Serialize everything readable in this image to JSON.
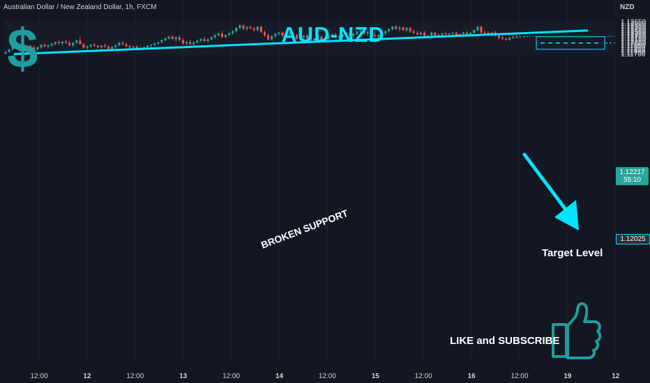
{
  "header": {
    "symbol_title": "Australian Dollar / New Zealand Dollar, 1h, FXCM",
    "currency": "NZD"
  },
  "annotations": {
    "title": "AUD-NZD",
    "dollar_sign": "$",
    "support_label": "BROKEN SUPPORT",
    "target_label": "Target Level",
    "cta": "LIKE and SUBSCRIBE"
  },
  "price_tags": {
    "current_price": "1.12217",
    "countdown": "55:10",
    "target_price": "1.12025"
  },
  "colors": {
    "background": "#131722",
    "up": "#26a69a",
    "down": "#ef5350",
    "accent": "#00e5ff",
    "grid": "#1e2230"
  },
  "icons": [
    "dollar-icon",
    "thumbs-up-icon",
    "arrow-down-right-icon"
  ],
  "chart_data": {
    "type": "candlestick",
    "title": "AUD-NZD",
    "ylabel": "NZD",
    "ylim": [
      1.1167,
      1.1268
    ],
    "y_ticks": [
      "1.12650",
      "1.12600",
      "1.12550",
      "1.12500",
      "1.12450",
      "1.12400",
      "1.12350",
      "1.12300",
      "1.12250",
      "1.12200",
      "1.12150",
      "1.12100",
      "1.12050",
      "1.12000",
      "1.11950",
      "1.11900",
      "1.11850",
      "1.11800",
      "1.11750",
      "1.11700"
    ],
    "x_ticks": [
      "12:00",
      "12",
      "12:00",
      "13",
      "12:00",
      "14",
      "12:00",
      "15",
      "12:00",
      "16",
      "12:00",
      "19",
      "12"
    ],
    "support_line": {
      "start_price": 1.117,
      "end_price": 1.1239
    },
    "target_level": 1.12025,
    "current_price": 1.12217,
    "candles": [
      [
        1.1172,
        1.1178,
        1.1169,
        1.1176
      ],
      [
        1.1176,
        1.1186,
        1.1175,
        1.1184
      ],
      [
        1.1184,
        1.1195,
        1.118,
        1.1192
      ],
      [
        1.1192,
        1.1197,
        1.1185,
        1.1188
      ],
      [
        1.1188,
        1.1194,
        1.1176,
        1.118
      ],
      [
        1.118,
        1.119,
        1.1172,
        1.1187
      ],
      [
        1.1187,
        1.1196,
        1.1183,
        1.1194
      ],
      [
        1.1194,
        1.1198,
        1.1188,
        1.119
      ],
      [
        1.119,
        1.1195,
        1.1182,
        1.1184
      ],
      [
        1.1184,
        1.1192,
        1.118,
        1.119
      ],
      [
        1.119,
        1.1199,
        1.1186,
        1.1197
      ],
      [
        1.1197,
        1.1202,
        1.119,
        1.1193
      ],
      [
        1.1193,
        1.1199,
        1.1187,
        1.1196
      ],
      [
        1.1196,
        1.1203,
        1.1192,
        1.12
      ],
      [
        1.12,
        1.1207,
        1.1196,
        1.1205
      ],
      [
        1.1205,
        1.121,
        1.1198,
        1.1202
      ],
      [
        1.1202,
        1.1208,
        1.1196,
        1.1206
      ],
      [
        1.1206,
        1.1212,
        1.12,
        1.1203
      ],
      [
        1.1203,
        1.1209,
        1.1193,
        1.1196
      ],
      [
        1.1196,
        1.1205,
        1.119,
        1.1203
      ],
      [
        1.1203,
        1.1213,
        1.1199,
        1.121
      ],
      [
        1.121,
        1.1221,
        1.1198,
        1.1199
      ],
      [
        1.1199,
        1.1203,
        1.1186,
        1.1189
      ],
      [
        1.1189,
        1.1195,
        1.1183,
        1.1193
      ],
      [
        1.1193,
        1.12,
        1.1188,
        1.1197
      ],
      [
        1.1197,
        1.1202,
        1.1191,
        1.1194
      ],
      [
        1.1194,
        1.1198,
        1.1187,
        1.119
      ],
      [
        1.119,
        1.1197,
        1.1185,
        1.1195
      ],
      [
        1.1195,
        1.1201,
        1.1189,
        1.1192
      ],
      [
        1.1192,
        1.1196,
        1.1184,
        1.1186
      ],
      [
        1.1186,
        1.1194,
        1.1182,
        1.1191
      ],
      [
        1.1191,
        1.1199,
        1.1187,
        1.1196
      ],
      [
        1.1196,
        1.1206,
        1.1193,
        1.1203
      ],
      [
        1.1203,
        1.1208,
        1.1196,
        1.1199
      ],
      [
        1.1199,
        1.1203,
        1.119,
        1.1193
      ],
      [
        1.1193,
        1.1197,
        1.1186,
        1.1189
      ],
      [
        1.1189,
        1.1195,
        1.1184,
        1.1192
      ],
      [
        1.1192,
        1.1196,
        1.1185,
        1.1187
      ],
      [
        1.1187,
        1.1191,
        1.1182,
        1.1185
      ],
      [
        1.1185,
        1.1192,
        1.1182,
        1.119
      ],
      [
        1.119,
        1.1197,
        1.1186,
        1.1194
      ],
      [
        1.1194,
        1.1199,
        1.1189,
        1.1197
      ],
      [
        1.1197,
        1.1204,
        1.1193,
        1.1201
      ],
      [
        1.1201,
        1.1207,
        1.1197,
        1.1205
      ],
      [
        1.1205,
        1.1213,
        1.1201,
        1.1211
      ],
      [
        1.1211,
        1.1219,
        1.1207,
        1.1216
      ],
      [
        1.1216,
        1.1224,
        1.1212,
        1.1221
      ],
      [
        1.1221,
        1.1226,
        1.1212,
        1.1214
      ],
      [
        1.1214,
        1.1222,
        1.1207,
        1.1219
      ],
      [
        1.1219,
        1.1225,
        1.1209,
        1.1211
      ],
      [
        1.1211,
        1.1216,
        1.1198,
        1.1201
      ],
      [
        1.1201,
        1.1209,
        1.1196,
        1.1205
      ],
      [
        1.1205,
        1.1212,
        1.1197,
        1.1199
      ],
      [
        1.1199,
        1.1207,
        1.1195,
        1.1204
      ],
      [
        1.1204,
        1.1212,
        1.1201,
        1.1209
      ],
      [
        1.1209,
        1.1217,
        1.1205,
        1.1214
      ],
      [
        1.1214,
        1.1221,
        1.1206,
        1.1208
      ],
      [
        1.1208,
        1.1216,
        1.1204,
        1.1213
      ],
      [
        1.1213,
        1.1222,
        1.121,
        1.1219
      ],
      [
        1.1219,
        1.1228,
        1.1215,
        1.1225
      ],
      [
        1.1225,
        1.1233,
        1.1221,
        1.123
      ],
      [
        1.123,
        1.1237,
        1.1217,
        1.122
      ],
      [
        1.122,
        1.1228,
        1.1216,
        1.1226
      ],
      [
        1.1226,
        1.1234,
        1.1222,
        1.1231
      ],
      [
        1.1231,
        1.124,
        1.1227,
        1.1237
      ],
      [
        1.1237,
        1.1249,
        1.1233,
        1.1247
      ],
      [
        1.1247,
        1.1257,
        1.1242,
        1.1254
      ],
      [
        1.1254,
        1.1256,
        1.124,
        1.1244
      ],
      [
        1.1244,
        1.1252,
        1.1238,
        1.1249
      ],
      [
        1.1249,
        1.1253,
        1.1243,
        1.1245
      ],
      [
        1.1245,
        1.125,
        1.1236,
        1.124
      ],
      [
        1.124,
        1.1252,
        1.1236,
        1.125
      ],
      [
        1.125,
        1.1252,
        1.1232,
        1.1234
      ],
      [
        1.1234,
        1.1239,
        1.122,
        1.1225
      ],
      [
        1.1225,
        1.1229,
        1.121,
        1.1213
      ],
      [
        1.1213,
        1.1225,
        1.121,
        1.1222
      ],
      [
        1.1222,
        1.1232,
        1.1218,
        1.1229
      ],
      [
        1.1229,
        1.1235,
        1.1224,
        1.1233
      ],
      [
        1.1233,
        1.1236,
        1.1221,
        1.1224
      ],
      [
        1.1224,
        1.1231,
        1.1219,
        1.1228
      ],
      [
        1.1228,
        1.1234,
        1.1224,
        1.1231
      ],
      [
        1.1231,
        1.1236,
        1.1222,
        1.1225
      ],
      [
        1.1225,
        1.1229,
        1.1212,
        1.1215
      ],
      [
        1.1215,
        1.1222,
        1.121,
        1.1219
      ],
      [
        1.1219,
        1.1227,
        1.1215,
        1.1224
      ],
      [
        1.1224,
        1.1229,
        1.1213,
        1.1216
      ],
      [
        1.1216,
        1.122,
        1.1206,
        1.121
      ],
      [
        1.121,
        1.1218,
        1.1206,
        1.1215
      ],
      [
        1.1215,
        1.1224,
        1.1211,
        1.1221
      ],
      [
        1.1221,
        1.1225,
        1.1209,
        1.1212
      ],
      [
        1.1212,
        1.122,
        1.1207,
        1.1216
      ],
      [
        1.1216,
        1.1225,
        1.1212,
        1.1223
      ],
      [
        1.1223,
        1.1231,
        1.1219,
        1.1227
      ],
      [
        1.1227,
        1.1233,
        1.1216,
        1.1219
      ],
      [
        1.1219,
        1.1226,
        1.1212,
        1.1222
      ],
      [
        1.1222,
        1.123,
        1.1218,
        1.1227
      ],
      [
        1.1227,
        1.1235,
        1.1223,
        1.1232
      ],
      [
        1.1232,
        1.1238,
        1.122,
        1.1224
      ],
      [
        1.1224,
        1.1232,
        1.1219,
        1.1229
      ],
      [
        1.1229,
        1.1239,
        1.1225,
        1.1236
      ],
      [
        1.1236,
        1.1244,
        1.123,
        1.1238
      ],
      [
        1.1238,
        1.1242,
        1.1226,
        1.123
      ],
      [
        1.123,
        1.1238,
        1.1224,
        1.1235
      ],
      [
        1.1235,
        1.124,
        1.1222,
        1.1226
      ],
      [
        1.1226,
        1.1233,
        1.1217,
        1.1222
      ],
      [
        1.1222,
        1.1228,
        1.1215,
        1.1226
      ],
      [
        1.1226,
        1.1234,
        1.1222,
        1.1231
      ],
      [
        1.1231,
        1.124,
        1.1226,
        1.1237
      ],
      [
        1.1237,
        1.1246,
        1.1233,
        1.1243
      ],
      [
        1.1243,
        1.1252,
        1.1239,
        1.125
      ],
      [
        1.125,
        1.1255,
        1.1241,
        1.1244
      ],
      [
        1.1244,
        1.1251,
        1.1237,
        1.1248
      ],
      [
        1.1248,
        1.1251,
        1.1238,
        1.124
      ],
      [
        1.124,
        1.1249,
        1.1235,
        1.1246
      ],
      [
        1.1246,
        1.125,
        1.1233,
        1.1236
      ],
      [
        1.1236,
        1.1243,
        1.1228,
        1.1232
      ],
      [
        1.1232,
        1.1238,
        1.1224,
        1.1228
      ],
      [
        1.1228,
        1.1236,
        1.1224,
        1.1233
      ],
      [
        1.1233,
        1.1237,
        1.122,
        1.1223
      ],
      [
        1.1223,
        1.1226,
        1.1219,
        1.1224
      ],
      [
        1.1224,
        1.1235,
        1.1222,
        1.1233
      ],
      [
        1.1233,
        1.1234,
        1.1222,
        1.1224
      ],
      [
        1.1224,
        1.1229,
        1.1218,
        1.1226
      ],
      [
        1.1226,
        1.1233,
        1.1222,
        1.123
      ],
      [
        1.123,
        1.1236,
        1.1225,
        1.1228
      ],
      [
        1.1228,
        1.1232,
        1.1222,
        1.123
      ],
      [
        1.123,
        1.1235,
        1.1225,
        1.1232
      ],
      [
        1.1232,
        1.1236,
        1.1223,
        1.1226
      ],
      [
        1.1226,
        1.123,
        1.122,
        1.1229
      ],
      [
        1.1229,
        1.1235,
        1.1225,
        1.1233
      ],
      [
        1.1233,
        1.1237,
        1.1226,
        1.1228
      ],
      [
        1.1228,
        1.1234,
        1.1224,
        1.1232
      ],
      [
        1.1232,
        1.1242,
        1.123,
        1.124
      ],
      [
        1.124,
        1.1252,
        1.1236,
        1.125
      ],
      [
        1.125,
        1.1253,
        1.123,
        1.1233
      ],
      [
        1.1233,
        1.124,
        1.1229,
        1.1232
      ],
      [
        1.1232,
        1.1236,
        1.1223,
        1.1226
      ],
      [
        1.1226,
        1.1235,
        1.1222,
        1.1233
      ],
      [
        1.1233,
        1.1238,
        1.1221,
        1.1224
      ],
      [
        1.1224,
        1.1228,
        1.1213,
        1.1218
      ],
      [
        1.1218,
        1.1225,
        1.1212,
        1.1215
      ],
      [
        1.1215,
        1.1219,
        1.1209,
        1.1212
      ],
      [
        1.1212,
        1.122,
        1.121,
        1.1218
      ],
      [
        1.1218,
        1.1224,
        1.1214,
        1.1221
      ],
      [
        1.1221,
        1.1225,
        1.1216,
        1.1219
      ],
      [
        1.1219,
        1.1223,
        1.1217,
        1.1221
      ],
      [
        1.1221,
        1.1223,
        1.1219,
        1.12217
      ]
    ]
  }
}
